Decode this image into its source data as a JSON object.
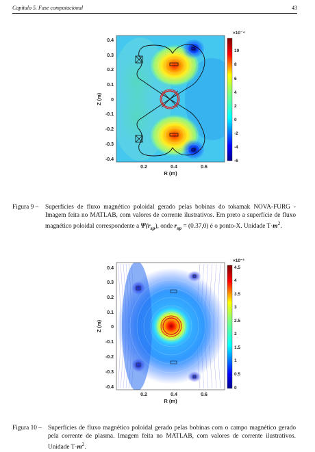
{
  "header": {
    "chapter": "Capítulo 5. Fase computacional",
    "page": "43"
  },
  "figures": [
    {
      "id": "fig9",
      "label": "Figura 9 –",
      "caption": "Superfícies de fluxo magnético poloidal gerado pelas bobinas do tokamak NOVA-FURG - Imagem feita no MATLAB, com valores de corrente ilustrativos. Em preto a superfície de fluxo magnético poloidal correspondente a Ψ(r_sp), onde r_sp = (0.37, 0) é o ponto-X. Unidade T·m².",
      "caption_parts": {
        "main": "Superfícies de fluxo magnético poloidal gerado pelas bobinas do tokamak NOVA-FURG - Imagem feita no MATLAB, com valores de corrente ilustrativos. Em preto a superfície de fluxo magnético poloidal correspondente a ",
        "psi": "Ψ(",
        "r": "r",
        "sub": "sp",
        "close": "), onde ",
        "r2": "r",
        "sub2": "sp",
        "eq": " = (0.37,0) é o ponto-X. Unidade T·",
        "m": "m",
        "end": "."
      }
    },
    {
      "id": "fig10",
      "label": "Figura 10 –",
      "caption_parts": {
        "main": "Superfícies de fluxo magnético poloidal gerado pelas bobinas com o campo magnético gerado pela corrente de plasma. Imagem feita no MATLAB, com valores de corrente ilustrativos. Unidade T·",
        "m": "m",
        "end": "."
      }
    }
  ],
  "chart_data": [
    {
      "type": "heatmap",
      "xlabel": "R (m)",
      "ylabel": "Z (m)",
      "xticks": [
        "0.2",
        "0.4",
        "0.6"
      ],
      "yticks": [
        "0.4",
        "0.3",
        "0.2",
        "0.1",
        "0",
        "-0.1",
        "-0.2",
        "-0.3",
        "-0.4"
      ],
      "xlim": [
        0.05,
        0.72
      ],
      "ylim": [
        -0.42,
        0.42
      ],
      "colorbar": {
        "exponent": "×10⁻⁴",
        "ticks": [
          "10",
          "8",
          "6",
          "4",
          "2",
          "0",
          "-2",
          "-4",
          "-6"
        ],
        "min": -6,
        "max": 11
      },
      "x_point": [
        0.37,
        0
      ]
    },
    {
      "type": "heatmap",
      "xlabel": "R (m)",
      "ylabel": "Z (m)",
      "xticks": [
        "0.2",
        "0.4",
        "0.6"
      ],
      "yticks": [
        "0.4",
        "0.3",
        "0.2",
        "0.1",
        "0",
        "-0.1",
        "-0.2",
        "-0.3",
        "-0.4"
      ],
      "xlim": [
        0.05,
        0.72
      ],
      "ylim": [
        -0.42,
        0.42
      ],
      "colorbar": {
        "exponent": "×10⁻³",
        "ticks": [
          "4.5",
          "4",
          "3.5",
          "3",
          "2.5",
          "2",
          "1.5",
          "1",
          "0.5",
          "0"
        ],
        "min": 0,
        "max": 4.6
      }
    }
  ]
}
